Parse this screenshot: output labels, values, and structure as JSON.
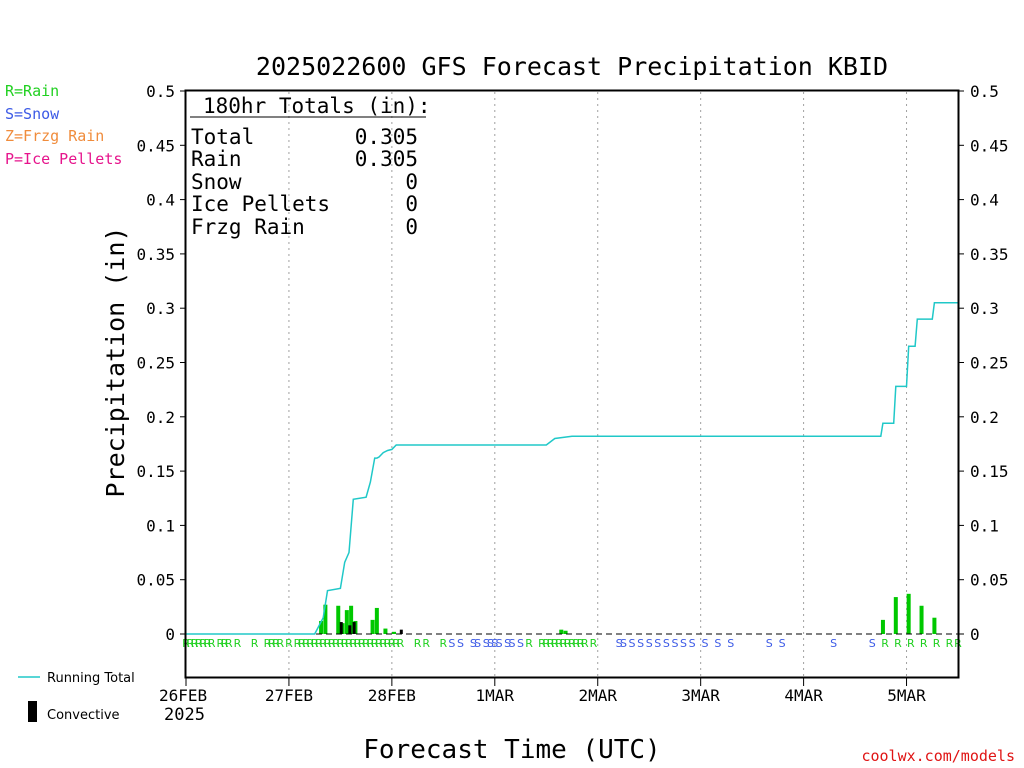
{
  "chart_data": {
    "type": "bar",
    "title": "2025022600 GFS Forecast Precipitation KBID",
    "xlabel": "Forecast Time (UTC)",
    "ylabel": "Precipitation (in)",
    "ylim": [
      0,
      0.5
    ],
    "y_ticks": [
      0,
      0.05,
      0.1,
      0.15,
      0.2,
      0.25,
      0.3,
      0.35,
      0.4,
      0.45,
      0.5
    ],
    "y_tick_labels": [
      "0",
      "0.05",
      "0.1",
      "0.15",
      "0.2",
      "0.25",
      "0.3",
      "0.35",
      "0.4",
      "0.45",
      "0.5"
    ],
    "xlim_hours": [
      0,
      180
    ],
    "x_ticks": [
      {
        "hour": 0,
        "label": "26FEB"
      },
      {
        "hour": 24,
        "label": "27FEB"
      },
      {
        "hour": 48,
        "label": "28FEB"
      },
      {
        "hour": 72,
        "label": "1MAR"
      },
      {
        "hour": 96,
        "label": "2MAR"
      },
      {
        "hour": 120,
        "label": "3MAR"
      },
      {
        "hour": 144,
        "label": "4MAR"
      },
      {
        "hour": 168,
        "label": "5MAR"
      }
    ],
    "year_label": "2025",
    "grid": "vertical-dotted",
    "series": [
      {
        "name": "Running Total",
        "type": "line",
        "color": "#20c8c8",
        "x": [
          0,
          30,
          32,
          33,
          36,
          37,
          38,
          39,
          42,
          43,
          44,
          44.5,
          45,
          46,
          47,
          48,
          49,
          84,
          86,
          90,
          96,
          108,
          120,
          144,
          162,
          162.5,
          165,
          165.5,
          168,
          168.5,
          170,
          170.5,
          174,
          174.5,
          180
        ],
        "y": [
          0,
          0,
          0.015,
          0.04,
          0.042,
          0.066,
          0.075,
          0.124,
          0.126,
          0.14,
          0.162,
          0.162,
          0.163,
          0.167,
          0.169,
          0.17,
          0.174,
          0.174,
          0.18,
          0.182,
          0.182,
          0.182,
          0.182,
          0.182,
          0.182,
          0.194,
          0.194,
          0.228,
          0.228,
          0.265,
          0.265,
          0.29,
          0.29,
          0.305,
          0.305
        ]
      },
      {
        "name": "Precipitation",
        "type": "bar",
        "color": "#00c800",
        "x": [
          31.5,
          32.5,
          35.5,
          36.5,
          37.5,
          38.5,
          39.5,
          43.5,
          44.5,
          46.5,
          48.5,
          87.5,
          88.5,
          162.5,
          165.5,
          168.5,
          171.5,
          174.5
        ],
        "y": [
          0.012,
          0.027,
          0.026,
          0.01,
          0.022,
          0.026,
          0.012,
          0.013,
          0.024,
          0.005,
          0.002,
          0.004,
          0.003,
          0.013,
          0.034,
          0.037,
          0.026,
          0.015
        ]
      },
      {
        "name": "Convective",
        "type": "bar",
        "color": "#000000",
        "x": [
          36.2,
          38.2,
          39.2,
          50.2
        ],
        "y": [
          0.011,
          0.008,
          0.011,
          0.004
        ]
      }
    ],
    "ptype_markers": [
      {
        "hour": 0,
        "type": "R"
      },
      {
        "hour": 1,
        "type": "R"
      },
      {
        "hour": 2,
        "type": "R"
      },
      {
        "hour": 3,
        "type": "R"
      },
      {
        "hour": 4,
        "type": "R"
      },
      {
        "hour": 5,
        "type": "R"
      },
      {
        "hour": 6,
        "type": "R"
      },
      {
        "hour": 8,
        "type": "R"
      },
      {
        "hour": 9,
        "type": "R"
      },
      {
        "hour": 10,
        "type": "R"
      },
      {
        "hour": 12,
        "type": "R"
      },
      {
        "hour": 16,
        "type": "R"
      },
      {
        "hour": 19,
        "type": "R"
      },
      {
        "hour": 20,
        "type": "R"
      },
      {
        "hour": 21,
        "type": "R"
      },
      {
        "hour": 22,
        "type": "R"
      },
      {
        "hour": 24,
        "type": "R"
      },
      {
        "hour": 26,
        "type": "R"
      },
      {
        "hour": 27,
        "type": "R"
      },
      {
        "hour": 28,
        "type": "R"
      },
      {
        "hour": 29,
        "type": "R"
      },
      {
        "hour": 30,
        "type": "R"
      },
      {
        "hour": 31,
        "type": "R"
      },
      {
        "hour": 32,
        "type": "R"
      },
      {
        "hour": 33,
        "type": "R"
      },
      {
        "hour": 34,
        "type": "R"
      },
      {
        "hour": 35,
        "type": "R"
      },
      {
        "hour": 36,
        "type": "R"
      },
      {
        "hour": 37,
        "type": "R"
      },
      {
        "hour": 38,
        "type": "R"
      },
      {
        "hour": 39,
        "type": "R"
      },
      {
        "hour": 40,
        "type": "R"
      },
      {
        "hour": 41,
        "type": "R"
      },
      {
        "hour": 42,
        "type": "R"
      },
      {
        "hour": 43,
        "type": "R"
      },
      {
        "hour": 44,
        "type": "R"
      },
      {
        "hour": 45,
        "type": "R"
      },
      {
        "hour": 46,
        "type": "R"
      },
      {
        "hour": 47,
        "type": "R"
      },
      {
        "hour": 48,
        "type": "R"
      },
      {
        "hour": 49,
        "type": "R"
      },
      {
        "hour": 50,
        "type": "R"
      },
      {
        "hour": 54,
        "type": "R"
      },
      {
        "hour": 56,
        "type": "R"
      },
      {
        "hour": 60,
        "type": "R"
      },
      {
        "hour": 62,
        "type": "S"
      },
      {
        "hour": 64,
        "type": "S"
      },
      {
        "hour": 67,
        "type": "S"
      },
      {
        "hour": 68,
        "type": "S"
      },
      {
        "hour": 70,
        "type": "S"
      },
      {
        "hour": 71,
        "type": "S"
      },
      {
        "hour": 72,
        "type": "S"
      },
      {
        "hour": 73,
        "type": "S"
      },
      {
        "hour": 75,
        "type": "S"
      },
      {
        "hour": 76,
        "type": "S"
      },
      {
        "hour": 78,
        "type": "S"
      },
      {
        "hour": 80,
        "type": "R"
      },
      {
        "hour": 83,
        "type": "R"
      },
      {
        "hour": 84,
        "type": "R"
      },
      {
        "hour": 85,
        "type": "R"
      },
      {
        "hour": 86,
        "type": "R"
      },
      {
        "hour": 87,
        "type": "R"
      },
      {
        "hour": 88,
        "type": "R"
      },
      {
        "hour": 89,
        "type": "R"
      },
      {
        "hour": 90,
        "type": "R"
      },
      {
        "hour": 91,
        "type": "R"
      },
      {
        "hour": 92,
        "type": "R"
      },
      {
        "hour": 93,
        "type": "R"
      },
      {
        "hour": 95,
        "type": "R"
      },
      {
        "hour": 101,
        "type": "S"
      },
      {
        "hour": 102,
        "type": "S"
      },
      {
        "hour": 104,
        "type": "S"
      },
      {
        "hour": 106,
        "type": "S"
      },
      {
        "hour": 108,
        "type": "S"
      },
      {
        "hour": 110,
        "type": "S"
      },
      {
        "hour": 112,
        "type": "S"
      },
      {
        "hour": 114,
        "type": "S"
      },
      {
        "hour": 116,
        "type": "S"
      },
      {
        "hour": 118,
        "type": "S"
      },
      {
        "hour": 121,
        "type": "S"
      },
      {
        "hour": 124,
        "type": "S"
      },
      {
        "hour": 127,
        "type": "S"
      },
      {
        "hour": 136,
        "type": "S"
      },
      {
        "hour": 139,
        "type": "S"
      },
      {
        "hour": 151,
        "type": "S"
      },
      {
        "hour": 160,
        "type": "S"
      },
      {
        "hour": 163,
        "type": "R"
      },
      {
        "hour": 166,
        "type": "R"
      },
      {
        "hour": 169,
        "type": "R"
      },
      {
        "hour": 172,
        "type": "R"
      },
      {
        "hour": 175,
        "type": "R"
      },
      {
        "hour": 178,
        "type": "R"
      },
      {
        "hour": 180,
        "type": "R"
      }
    ]
  },
  "totals_box": {
    "header": "180hr Totals (in):",
    "rows": [
      {
        "label": "Total",
        "value": "0.305"
      },
      {
        "label": "Rain",
        "value": "0.305"
      },
      {
        "label": "Snow",
        "value": "0"
      },
      {
        "label": "Ice Pellets",
        "value": "0"
      },
      {
        "label": "Frzg Rain",
        "value": "0"
      }
    ]
  },
  "ptype_legend": [
    {
      "text": "R=Rain",
      "color": "#20d020"
    },
    {
      "text": "S=Snow",
      "color": "#3c5ae6"
    },
    {
      "text": "Z=Frzg Rain",
      "color": "#f08c3c"
    },
    {
      "text": "P=Ice Pellets",
      "color": "#e6148c"
    }
  ],
  "marker_colors": {
    "R": "#20d020",
    "S": "#3c5ae6",
    "Z": "#f08c3c",
    "P": "#e6148c"
  },
  "bottom_legend": {
    "running_total": "Running Total",
    "convective": "Convective"
  },
  "credit": {
    "text": "coolwx.com/models",
    "color": "#e01414"
  }
}
